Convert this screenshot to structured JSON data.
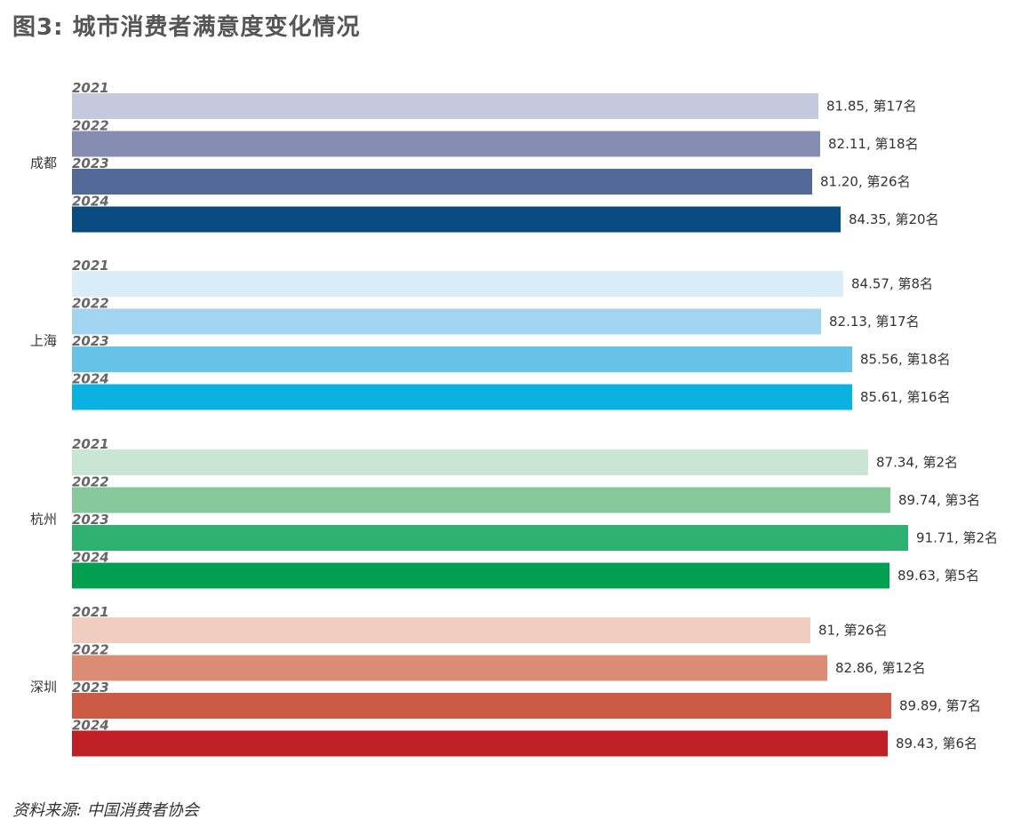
{
  "title": "图3: 城市消费者满意度变化情况",
  "source": "资料来源: 中国消费者协会",
  "chart_data": {
    "type": "bar",
    "orientation": "horizontal",
    "title": "图3: 城市消费者满意度变化情况",
    "xlabel": "",
    "ylabel": "",
    "grid": false,
    "legend": "none",
    "xlim": [
      0,
      93
    ],
    "groups": [
      {
        "city": "成都",
        "bars": [
          {
            "year": "2021",
            "value": 81.85,
            "label": "81.85, 第17名",
            "color": "#c5c9dd"
          },
          {
            "year": "2022",
            "value": 82.11,
            "label": "82.11, 第18名",
            "color": "#858db2"
          },
          {
            "year": "2023",
            "value": 81.2,
            "label": "81.20, 第26名",
            "color": "#536a98"
          },
          {
            "year": "2024",
            "value": 84.35,
            "label": "84.35, 第20名",
            "color": "#0a4c80"
          }
        ]
      },
      {
        "city": "上海",
        "bars": [
          {
            "year": "2021",
            "value": 84.57,
            "label": "84.57, 第8名",
            "color": "#d8edf7"
          },
          {
            "year": "2022",
            "value": 82.13,
            "label": "82.13, 第17名",
            "color": "#a1d4ef"
          },
          {
            "year": "2023",
            "value": 85.56,
            "label": "85.56, 第18名",
            "color": "#66c2e6"
          },
          {
            "year": "2024",
            "value": 85.61,
            "label": "85.61, 第16名",
            "color": "#0ab1e1"
          }
        ]
      },
      {
        "city": "杭州",
        "bars": [
          {
            "year": "2021",
            "value": 87.34,
            "label": "87.34, 第2名",
            "color": "#c9e5d3"
          },
          {
            "year": "2022",
            "value": 89.74,
            "label": "89.74, 第3名",
            "color": "#87c89a"
          },
          {
            "year": "2023",
            "value": 91.71,
            "label": "91.71, 第2名",
            "color": "#2eb071"
          },
          {
            "year": "2024",
            "value": 89.63,
            "label": "89.63, 第5名",
            "color": "#00a050"
          }
        ]
      },
      {
        "city": "深圳",
        "bars": [
          {
            "year": "2021",
            "value": 81,
            "label": "81, 第26名",
            "color": "#f1cdc0"
          },
          {
            "year": "2022",
            "value": 82.86,
            "label": "82.86, 第12名",
            "color": "#db8c74"
          },
          {
            "year": "2023",
            "value": 89.89,
            "label": "89.89, 第7名",
            "color": "#cc5b45"
          },
          {
            "year": "2024",
            "value": 89.43,
            "label": "89.43, 第6名",
            "color": "#be2026"
          }
        ]
      }
    ]
  }
}
